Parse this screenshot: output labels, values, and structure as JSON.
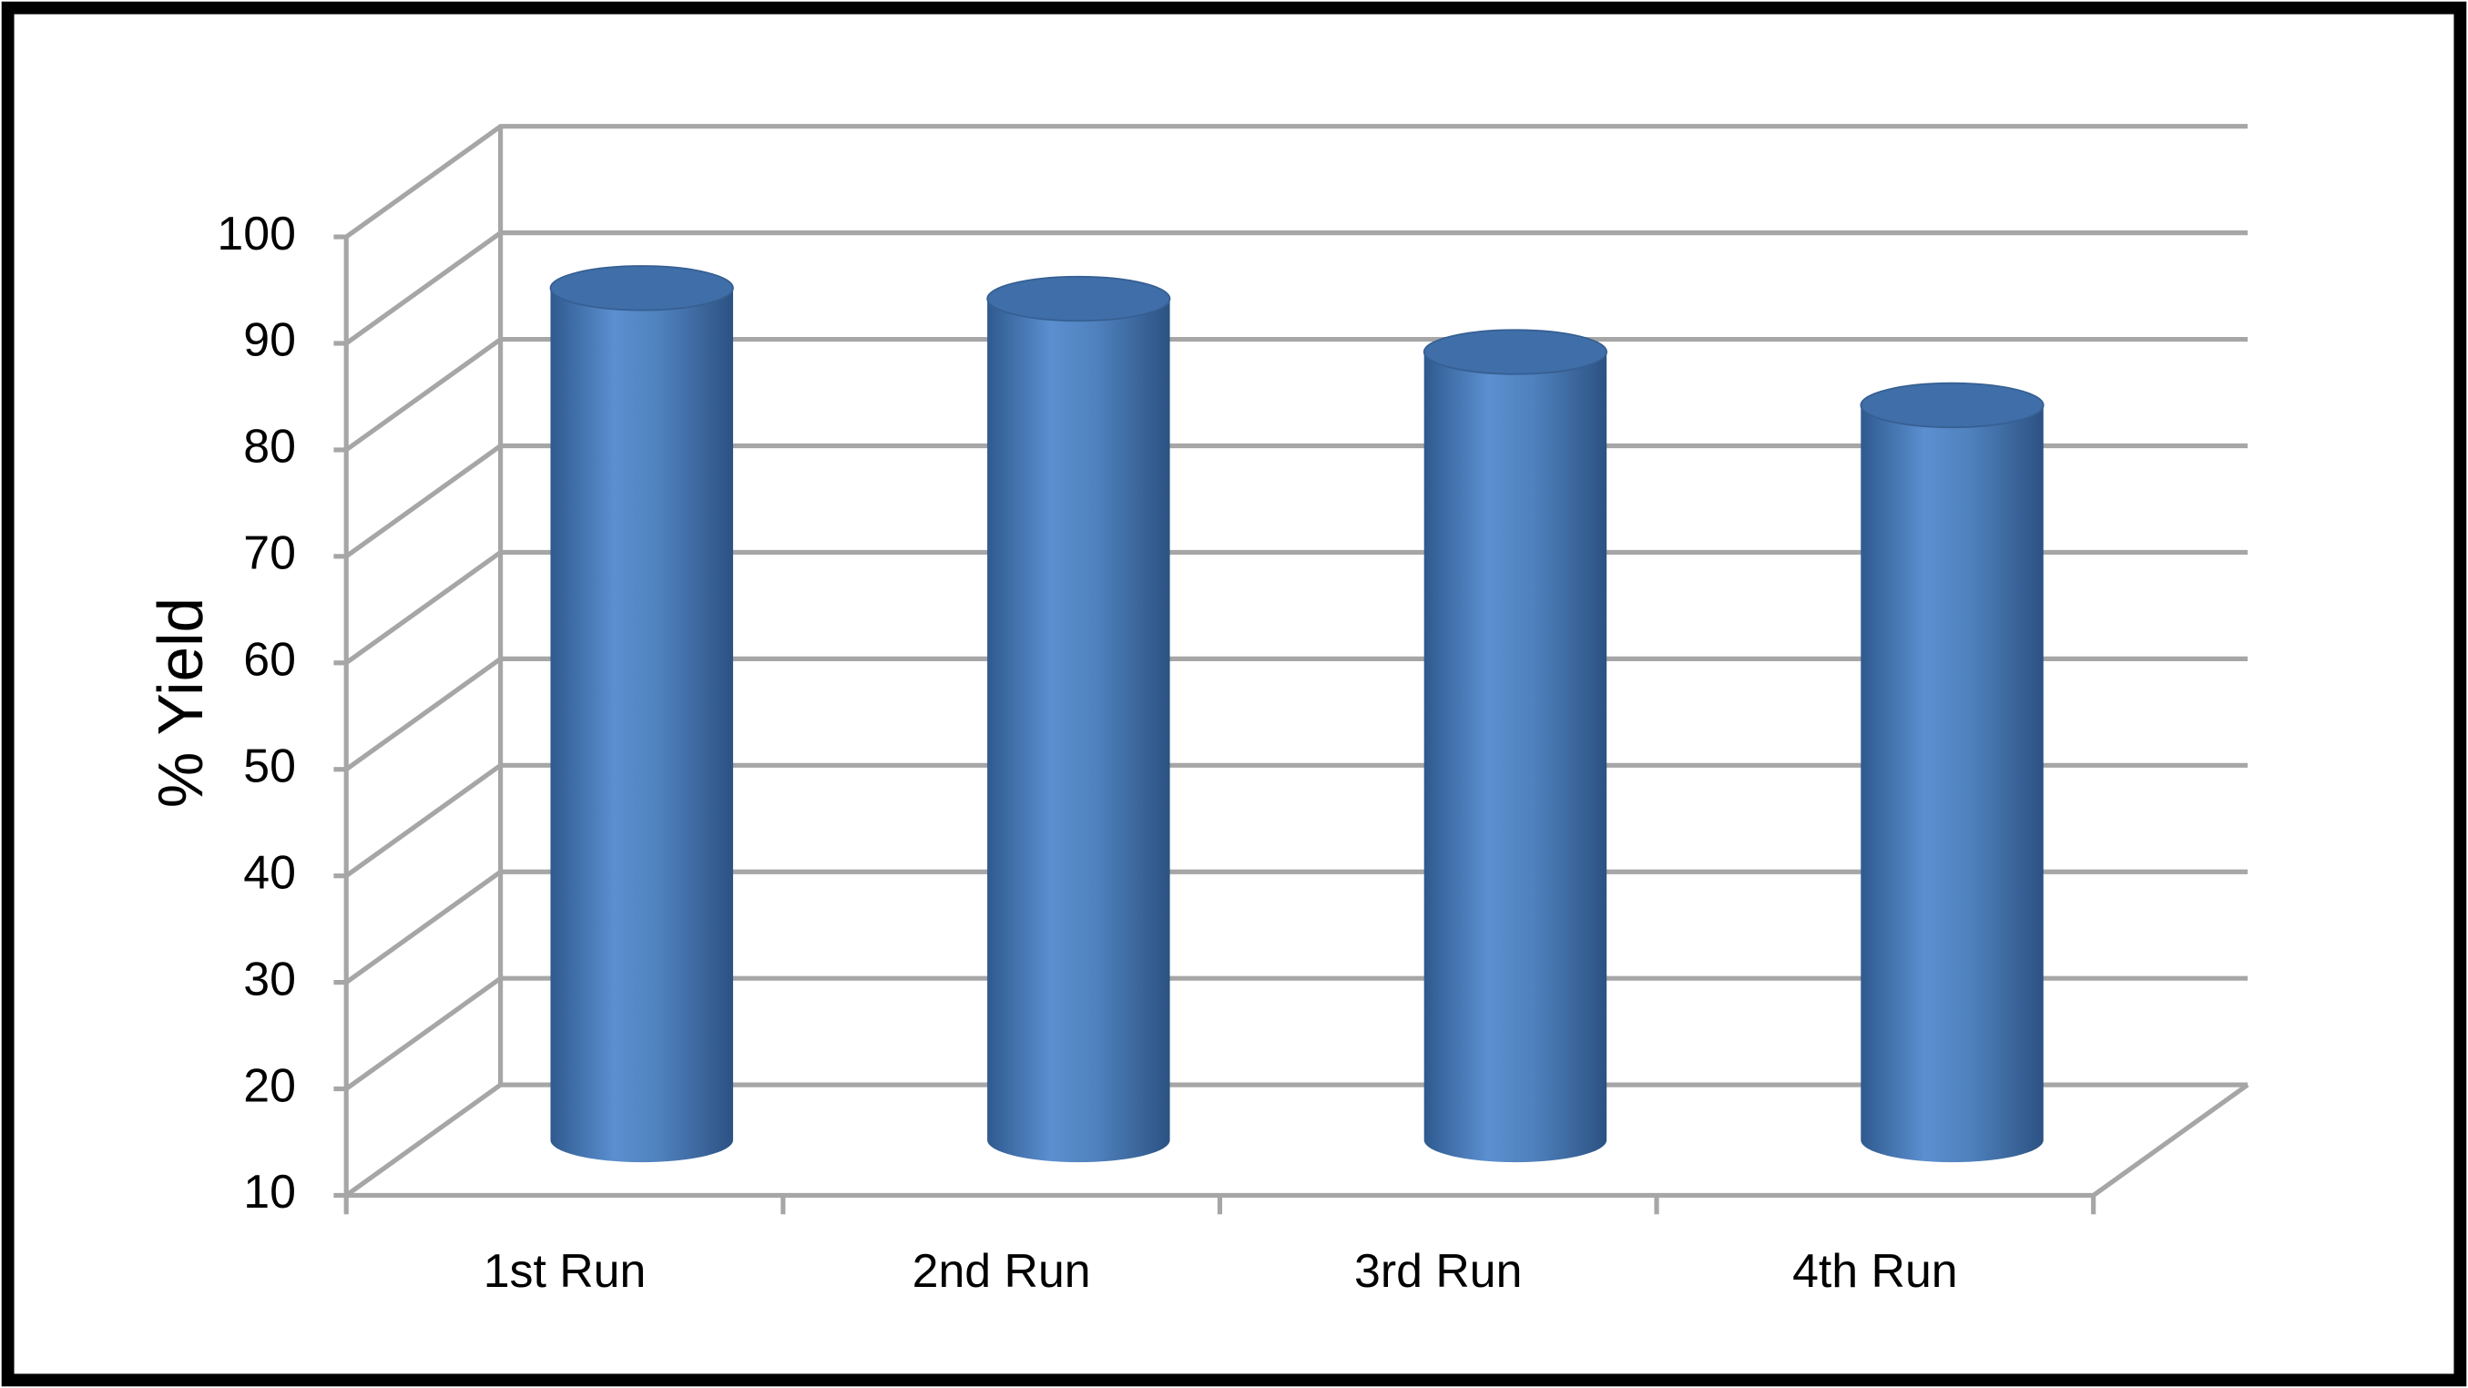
{
  "chart_data": {
    "type": "cylinder",
    "y_label": "% Yield",
    "categories": [
      "1st Run",
      "2nd Run",
      "3rd Run",
      "4th Run"
    ],
    "values": [
      90,
      89,
      84,
      79
    ],
    "color": "#4f81bd",
    "ylim": [
      10,
      100
    ],
    "yticks": [
      10,
      20,
      30,
      40,
      50,
      60,
      70,
      80,
      90,
      100
    ],
    "grid": true
  }
}
